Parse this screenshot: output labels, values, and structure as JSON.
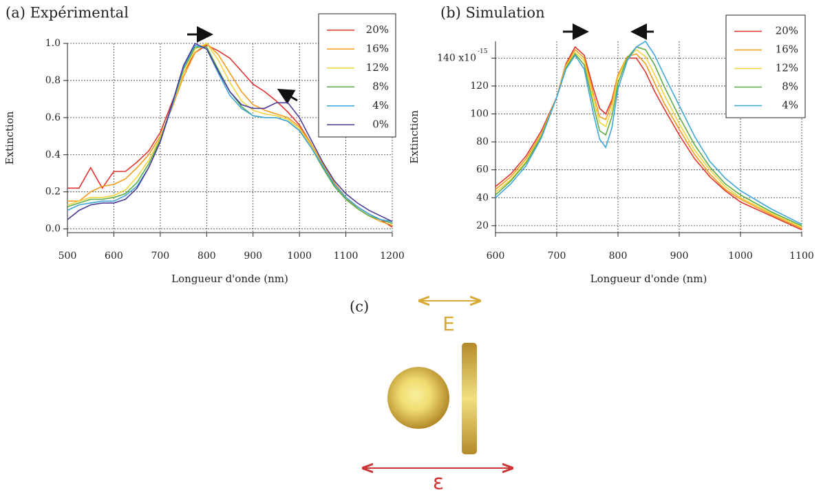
{
  "chart_data": [
    {
      "type": "line",
      "title": "(a) Expérimental",
      "xlabel": "Longueur d'onde (nm)",
      "ylabel": "Extinction",
      "x": [
        500,
        525,
        550,
        575,
        600,
        625,
        650,
        675,
        700,
        725,
        750,
        775,
        800,
        825,
        850,
        875,
        900,
        925,
        950,
        975,
        1000,
        1025,
        1050,
        1075,
        1100,
        1125,
        1150,
        1175,
        1200
      ],
      "series": [
        {
          "name": "20%",
          "color": "#e0322d",
          "values": [
            0.22,
            0.22,
            0.33,
            0.22,
            0.31,
            0.31,
            0.36,
            0.42,
            0.52,
            0.68,
            0.84,
            0.95,
            0.99,
            0.96,
            0.92,
            0.85,
            0.78,
            0.74,
            0.69,
            0.63,
            0.56,
            0.46,
            0.34,
            0.24,
            0.17,
            0.12,
            0.08,
            0.05,
            0.01
          ]
        },
        {
          "name": "16%",
          "color": "#f39c1a",
          "values": [
            0.15,
            0.15,
            0.2,
            0.23,
            0.24,
            0.27,
            0.33,
            0.4,
            0.5,
            0.65,
            0.82,
            0.95,
            1.0,
            0.94,
            0.84,
            0.74,
            0.67,
            0.64,
            0.62,
            0.6,
            0.55,
            0.46,
            0.35,
            0.25,
            0.17,
            0.11,
            0.07,
            0.04,
            0.02
          ]
        },
        {
          "name": "12%",
          "color": "#f2d43e",
          "values": [
            0.13,
            0.15,
            0.17,
            0.17,
            0.18,
            0.21,
            0.28,
            0.37,
            0.49,
            0.66,
            0.84,
            0.97,
            1.0,
            0.91,
            0.79,
            0.69,
            0.64,
            0.62,
            0.61,
            0.59,
            0.54,
            0.45,
            0.34,
            0.24,
            0.16,
            0.11,
            0.07,
            0.05,
            0.03
          ]
        },
        {
          "name": "8%",
          "color": "#5aab44",
          "values": [
            0.12,
            0.14,
            0.16,
            0.16,
            0.17,
            0.19,
            0.25,
            0.35,
            0.48,
            0.66,
            0.86,
            0.98,
            0.98,
            0.86,
            0.74,
            0.66,
            0.61,
            0.6,
            0.6,
            0.58,
            0.53,
            0.44,
            0.33,
            0.23,
            0.16,
            0.11,
            0.07,
            0.05,
            0.03
          ]
        },
        {
          "name": "4%",
          "color": "#3ea5dc",
          "values": [
            0.1,
            0.13,
            0.14,
            0.15,
            0.15,
            0.18,
            0.23,
            0.33,
            0.47,
            0.66,
            0.87,
            0.99,
            0.97,
            0.84,
            0.72,
            0.65,
            0.61,
            0.6,
            0.6,
            0.58,
            0.53,
            0.44,
            0.34,
            0.24,
            0.17,
            0.12,
            0.08,
            0.05,
            0.04
          ]
        },
        {
          "name": "0%",
          "color": "#4a3a95",
          "values": [
            0.05,
            0.1,
            0.13,
            0.14,
            0.14,
            0.16,
            0.22,
            0.33,
            0.47,
            0.67,
            0.88,
            1.0,
            0.97,
            0.85,
            0.74,
            0.67,
            0.65,
            0.65,
            0.68,
            0.68,
            0.6,
            0.48,
            0.36,
            0.26,
            0.19,
            0.14,
            0.1,
            0.07,
            0.04
          ]
        }
      ],
      "xlim": [
        500,
        1200
      ],
      "ylim": [
        -0.02,
        1.0
      ],
      "xticks": [
        500,
        600,
        700,
        800,
        900,
        1000,
        1100,
        1200
      ],
      "yticks": [
        {
          "value": 0,
          "label": "0.0"
        },
        0.2,
        0.4,
        0.6,
        0.8,
        {
          "value": 1,
          "label": "1.0"
        }
      ],
      "grid": true,
      "legend": "upper right"
    },
    {
      "type": "line",
      "title": "(b) Simulation",
      "xlabel": "Longueur d'onde (nm)",
      "ylabel": "Extinction",
      "x": [
        600,
        625,
        650,
        675,
        700,
        715,
        730,
        745,
        760,
        770,
        780,
        790,
        800,
        815,
        830,
        845,
        860,
        875,
        900,
        925,
        950,
        975,
        1000,
        1050,
        1100
      ],
      "series": [
        {
          "name": "20%",
          "color": "#e0322d",
          "values": [
            48,
            57,
            70,
            88,
            112,
            136,
            148,
            142,
            118,
            104,
            100,
            110,
            128,
            140,
            140,
            130,
            116,
            104,
            85,
            68,
            55,
            45,
            37,
            27,
            17
          ]
        },
        {
          "name": "16%",
          "color": "#f39c1a",
          "values": [
            46,
            55,
            68,
            86,
            112,
            135,
            146,
            140,
            114,
            98,
            96,
            108,
            128,
            141,
            143,
            136,
            122,
            108,
            89,
            71,
            57,
            46,
            39,
            28,
            18
          ]
        },
        {
          "name": "12%",
          "color": "#f2d43e",
          "values": [
            44,
            53,
            66,
            85,
            112,
            134,
            144,
            138,
            110,
            94,
            91,
            104,
            126,
            140,
            146,
            141,
            128,
            114,
            93,
            74,
            60,
            48,
            40,
            29,
            19
          ]
        },
        {
          "name": "8%",
          "color": "#5aab44",
          "values": [
            42,
            52,
            65,
            84,
            112,
            133,
            143,
            135,
            106,
            88,
            85,
            98,
            122,
            140,
            148,
            146,
            135,
            120,
            98,
            78,
            62,
            50,
            42,
            30,
            20
          ]
        },
        {
          "name": "4%",
          "color": "#3ea5dc",
          "values": [
            40,
            50,
            63,
            83,
            112,
            132,
            142,
            132,
            100,
            82,
            76,
            90,
            118,
            138,
            148,
            152,
            142,
            128,
            106,
            84,
            66,
            54,
            45,
            32,
            21
          ]
        }
      ],
      "xlim": [
        600,
        1100
      ],
      "ylim": [
        15,
        152
      ],
      "xticks": [
        600,
        700,
        800,
        900,
        1000,
        1100
      ],
      "yticks": [
        20,
        40,
        60,
        80,
        100,
        120,
        {
          "value": 140,
          "label": "140 x10"
        }
      ],
      "y_exponent": "-15",
      "grid": true,
      "legend": "upper right"
    }
  ],
  "diagram": {
    "label": "(c)",
    "field_label": "E",
    "permittivity_label": "ε"
  }
}
